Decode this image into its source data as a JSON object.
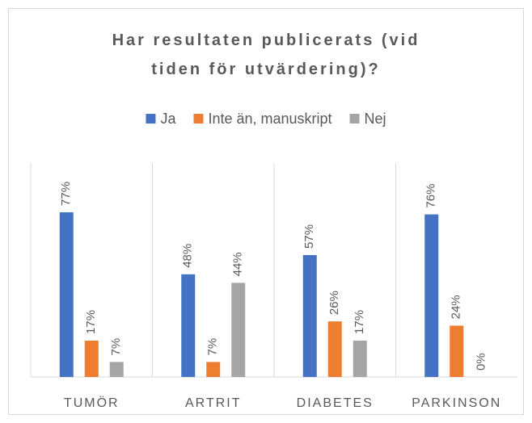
{
  "chart_data": {
    "type": "bar",
    "title": "Har resultaten publicerats (vid tiden för utvärdering)?",
    "categories": [
      "TUMÖR",
      "ARTRIT",
      "DIABETES",
      "PARKINSON"
    ],
    "series": [
      {
        "name": "Ja",
        "color": "#4472c4",
        "values": [
          77,
          48,
          57,
          76
        ],
        "value_labels": [
          "77%",
          "48%",
          "57%",
          "76%"
        ]
      },
      {
        "name": "Inte än, manuskript",
        "color": "#ed7d31",
        "values": [
          17,
          7,
          26,
          24
        ],
        "value_labels": [
          "17%",
          "7%",
          "26%",
          "24%"
        ]
      },
      {
        "name": "Nej",
        "color": "#a5a5a5",
        "values": [
          7,
          44,
          17,
          0
        ],
        "value_labels": [
          "7%",
          "44%",
          "17%",
          "0%"
        ]
      }
    ],
    "ylim": [
      0,
      100
    ],
    "legend": "top"
  }
}
